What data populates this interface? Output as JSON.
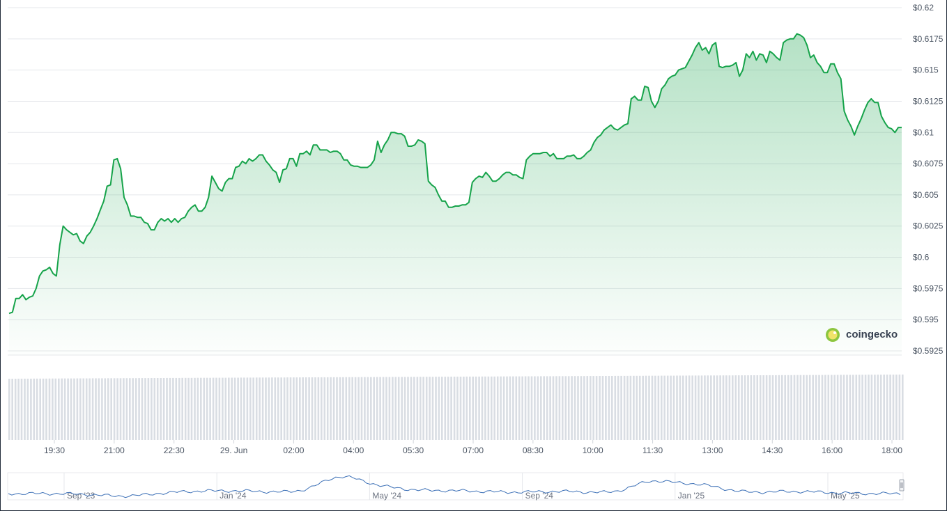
{
  "chart_data": {
    "type": "area",
    "y_axis": {
      "ticks": [
        "$0.62",
        "$0.6175",
        "$0.615",
        "$0.6125",
        "$0.61",
        "$0.6075",
        "$0.605",
        "$0.6025",
        "$0.6",
        "$0.5975",
        "$0.595",
        "$0.5925"
      ],
      "min": 0.5925,
      "max": 0.62
    },
    "x_axis": {
      "ticks": [
        "19:30",
        "21:00",
        "22:30",
        "29. Jun",
        "02:00",
        "04:00",
        "05:30",
        "07:00",
        "08:30",
        "10:00",
        "11:30",
        "13:00",
        "14:30",
        "16:00",
        "18:00"
      ]
    },
    "series": [
      {
        "values": [
          0.5955,
          0.5956,
          0.5967,
          0.5967,
          0.597,
          0.5966,
          0.5968,
          0.5969,
          0.5975,
          0.5985,
          0.5989,
          0.599,
          0.5992,
          0.5987,
          0.5985,
          0.601,
          0.6025,
          0.6022,
          0.602,
          0.6018,
          0.6019,
          0.6013,
          0.6011,
          0.6017,
          0.602,
          0.6025,
          0.6031,
          0.6038,
          0.6045,
          0.6057,
          0.6058,
          0.6078,
          0.6079,
          0.6071,
          0.6048,
          0.6042,
          0.6033,
          0.6033,
          0.6032,
          0.6032,
          0.6028,
          0.6027,
          0.6022,
          0.6022,
          0.6028,
          0.6031,
          0.6029,
          0.6031,
          0.6028,
          0.6031,
          0.6028,
          0.6031,
          0.6032,
          0.6037,
          0.604,
          0.6042,
          0.6037,
          0.6037,
          0.604,
          0.6048,
          0.6065,
          0.606,
          0.6055,
          0.6053,
          0.606,
          0.6063,
          0.6063,
          0.6072,
          0.6073,
          0.6077,
          0.6075,
          0.6079,
          0.6077,
          0.6079,
          0.6082,
          0.6082,
          0.6077,
          0.6074,
          0.607,
          0.6068,
          0.606,
          0.607,
          0.6071,
          0.6079,
          0.6079,
          0.6073,
          0.6083,
          0.6083,
          0.6085,
          0.6082,
          0.609,
          0.609,
          0.6086,
          0.6086,
          0.6086,
          0.6084,
          0.6085,
          0.6085,
          0.6083,
          0.6078,
          0.6078,
          0.6074,
          0.6073,
          0.6073,
          0.6072,
          0.6072,
          0.6072,
          0.6074,
          0.6078,
          0.6093,
          0.6084,
          0.609,
          0.6094,
          0.61,
          0.61,
          0.6099,
          0.6099,
          0.6097,
          0.6089,
          0.6089,
          0.609,
          0.6094,
          0.6093,
          0.6091,
          0.6061,
          0.6058,
          0.6056,
          0.605,
          0.6045,
          0.6045,
          0.604,
          0.604,
          0.6041,
          0.6041,
          0.6042,
          0.6042,
          0.6044,
          0.606,
          0.6063,
          0.6065,
          0.6064,
          0.6068,
          0.6065,
          0.6061,
          0.6061,
          0.6063,
          0.6066,
          0.6068,
          0.6068,
          0.6066,
          0.6066,
          0.6064,
          0.6063,
          0.6078,
          0.6081,
          0.6083,
          0.6083,
          0.6083,
          0.6084,
          0.6084,
          0.6081,
          0.6083,
          0.6079,
          0.6079,
          0.6079,
          0.6081,
          0.6081,
          0.6082,
          0.6079,
          0.6079,
          0.6081,
          0.6084,
          0.6086,
          0.6092,
          0.6096,
          0.6098,
          0.6102,
          0.6104,
          0.6106,
          0.6103,
          0.6102,
          0.6104,
          0.6106,
          0.6107,
          0.6127,
          0.6129,
          0.6126,
          0.6126,
          0.6137,
          0.6136,
          0.6125,
          0.612,
          0.6125,
          0.6135,
          0.6138,
          0.6143,
          0.6145,
          0.6146,
          0.615,
          0.6151,
          0.6152,
          0.6157,
          0.6162,
          0.6168,
          0.6172,
          0.6166,
          0.6168,
          0.6163,
          0.617,
          0.6172,
          0.6153,
          0.6152,
          0.6153,
          0.6153,
          0.6154,
          0.6156,
          0.6145,
          0.615,
          0.6163,
          0.616,
          0.6165,
          0.6158,
          0.6163,
          0.6162,
          0.6156,
          0.6165,
          0.6163,
          0.616,
          0.6158,
          0.6172,
          0.6174,
          0.6175,
          0.6175,
          0.6179,
          0.6178,
          0.6176,
          0.617,
          0.616,
          0.6162,
          0.6156,
          0.6153,
          0.6148,
          0.6148,
          0.6155,
          0.6155,
          0.6148,
          0.6143,
          0.6117,
          0.611,
          0.6105,
          0.6098,
          0.6105,
          0.6111,
          0.6118,
          0.6124,
          0.6127,
          0.6124,
          0.6124,
          0.6113,
          0.6108,
          0.6104,
          0.6103,
          0.61,
          0.6104,
          0.6104
        ]
      }
    ],
    "navigator": {
      "labels": [
        "Sep '23",
        "Jan '24",
        "May '24",
        "Sep '24",
        "Jan '25",
        "May '25"
      ]
    },
    "grid": true,
    "legend": "none"
  },
  "watermark": {
    "brand": "coingecko"
  },
  "colors": {
    "line": "#16a34a",
    "area_top": "#16a34a",
    "navigator_line": "#3b6fb6",
    "volume": "#d9dde3",
    "grid": "#e5e7eb"
  }
}
